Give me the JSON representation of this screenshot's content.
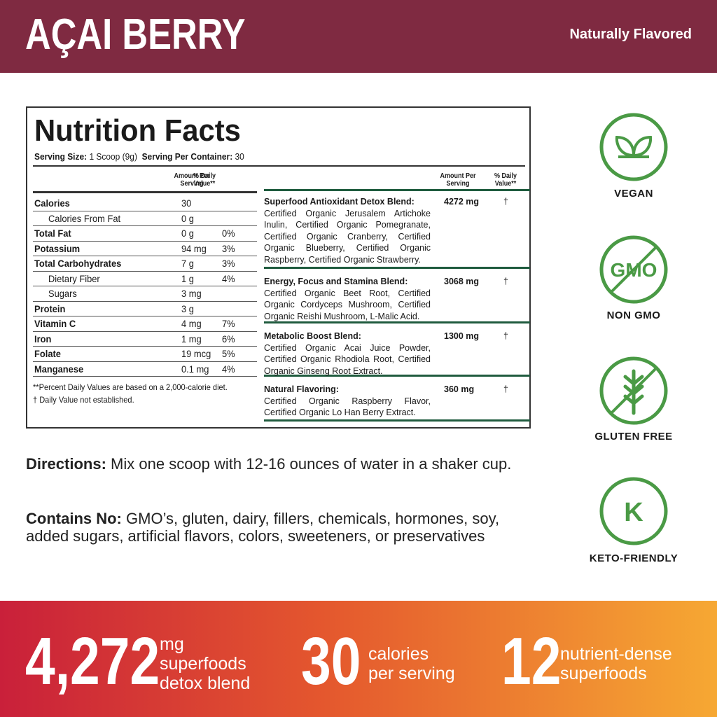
{
  "header": {
    "title": "AÇAI BERRY",
    "tag": "Naturally Flavored"
  },
  "nutrition": {
    "title": "Nutrition Facts",
    "serving_label": "Serving Size:",
    "serving": "1 Scoop (9g)",
    "container_label": "Serving Per Container:",
    "container": "30",
    "col_headers": [
      "Amount Per Serving",
      "% Daily Value**"
    ],
    "rows": [
      {
        "name": "Calories",
        "amount": "30",
        "sub": [
          {
            "name": "Calories From Fat",
            "amount": "0 g"
          }
        ]
      },
      {
        "name": "Total Fat",
        "amount": "0 g",
        "dv": "0%"
      },
      {
        "name": "Potassium",
        "amount": "94 mg",
        "dv": "3%"
      },
      {
        "name": "Total Carbohydrates",
        "amount": "7 g",
        "dv": "3%",
        "sub": [
          {
            "name": "Dietary Fiber",
            "amount": "1 g",
            "dv": "4%"
          },
          {
            "name": "Sugars",
            "amount": "3 mg"
          }
        ]
      },
      {
        "name": "Protein",
        "amount": "3 g"
      },
      {
        "name": "Vitamin C",
        "amount": "4 mg",
        "dv": "7%"
      },
      {
        "name": "Iron",
        "amount": "1 mg",
        "dv": "6%"
      },
      {
        "name": "Folate",
        "amount": "19 mcg",
        "dv": "5%"
      },
      {
        "name": "Manganese",
        "amount": "0.1 mg",
        "dv": "4%"
      }
    ],
    "footnotes": [
      "**Percent Daily Values are based on a 2,000-calorie diet.",
      "† Daily Value not established."
    ],
    "blends": [
      {
        "name": "Superfood Antioxidant Detox Blend:",
        "ingredients": "Certified Organic Jerusalem Artichoke Inulin, Certified Organic Pomegranate, Certified Organic Cranberry, Certified Organic Blueberry, Certified Organic Raspberry, Certified Organic Strawberry.",
        "amount": "4272 mg",
        "dv": "†"
      },
      {
        "name": "Energy, Focus and Stamina Blend:",
        "ingredients": "Certified Organic Beet Root, Certified Organic Cordyceps Mushroom, Certified Organic Reishi Mushroom, L-Malic Acid.",
        "amount": "3068 mg",
        "dv": "†"
      },
      {
        "name": "Metabolic Boost Blend:",
        "ingredients": "Certified Organic Acai Juice Powder, Certified Organic Rhodiola Root, Certified Organic Ginseng Root Extract.",
        "amount": "1300 mg",
        "dv": "†"
      },
      {
        "name": "Natural Flavoring:",
        "ingredients": "Certified Organic Raspberry Flavor, Certified Organic Lo Han Berry Extract.",
        "amount": "360 mg",
        "dv": "†"
      }
    ]
  },
  "directions": {
    "label": "Directions:",
    "text": "Mix one scoop with 12-16 ounces of water in a shaker cup."
  },
  "contains": {
    "label": "Contains No:",
    "text": "GMO’s, gluten, dairy, fillers, chemicals, hormones, soy, added sugars, artificial flavors, colors, sweeteners, or preservatives"
  },
  "badges": [
    {
      "label": "VEGAN"
    },
    {
      "label": "NON GMO",
      "icon_text": "GMO"
    },
    {
      "label": "GLUTEN FREE"
    },
    {
      "label": "KETO-FRIENDLY",
      "icon_text": "K"
    }
  ],
  "stats": [
    {
      "number": "4,272",
      "lines": [
        "mg",
        "superfoods",
        "detox blend"
      ]
    },
    {
      "number": "30",
      "lines": [
        "calories",
        "per serving"
      ]
    },
    {
      "number": "12",
      "lines": [
        "nutrient-dense",
        "superfoods"
      ]
    }
  ]
}
